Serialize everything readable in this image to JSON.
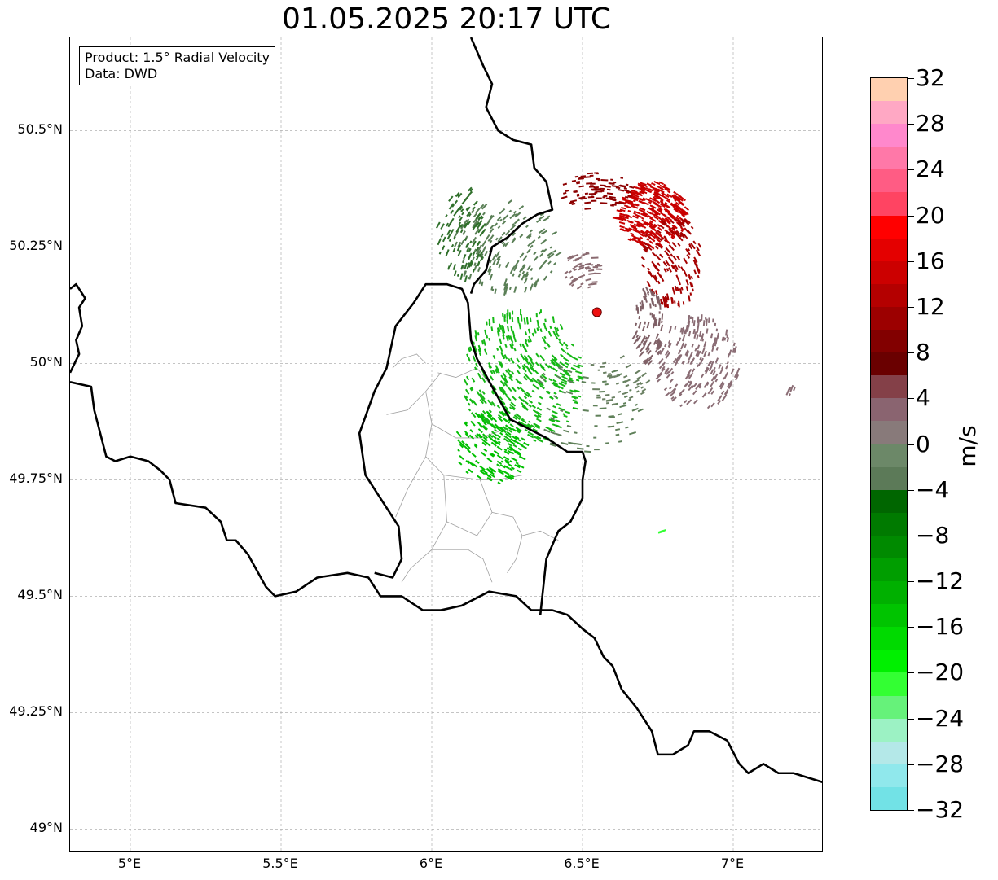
{
  "title": "01.05.2025 20:17 UTC",
  "info_box": {
    "product": "Product: 1.5° Radial Velocity",
    "data_source": "Data: DWD"
  },
  "map": {
    "lon_range": [
      4.8,
      7.3
    ],
    "lat_range": [
      48.95,
      50.7
    ],
    "lat_ticks": [
      {
        "value": 50.5,
        "label": "50.5°N"
      },
      {
        "value": 50.25,
        "label": "50.25°N"
      },
      {
        "value": 50.0,
        "label": "50°N"
      },
      {
        "value": 49.75,
        "label": "49.75°N"
      },
      {
        "value": 49.5,
        "label": "49.5°N"
      },
      {
        "value": 49.25,
        "label": "49.25°N"
      },
      {
        "value": 49.0,
        "label": "49°N"
      }
    ],
    "lon_ticks": [
      {
        "value": 5.0,
        "label": "5°E"
      },
      {
        "value": 5.5,
        "label": "5.5°E"
      },
      {
        "value": 6.0,
        "label": "6°E"
      },
      {
        "value": 6.5,
        "label": "6.5°E"
      },
      {
        "value": 7.0,
        "label": "7°E"
      }
    ],
    "grid": true,
    "radar_site": {
      "lon": 6.548,
      "lat": 50.11,
      "color": "#ee1111"
    },
    "borders": {
      "west": [
        [
          4.8,
          50.16
        ],
        [
          4.82,
          50.17
        ],
        [
          4.85,
          50.14
        ],
        [
          4.83,
          50.12
        ],
        [
          4.84,
          50.08
        ],
        [
          4.82,
          50.05
        ],
        [
          4.83,
          50.02
        ],
        [
          4.8,
          49.98
        ]
      ],
      "main": [
        [
          4.8,
          49.96
        ],
        [
          4.87,
          49.95
        ],
        [
          4.88,
          49.9
        ],
        [
          4.92,
          49.8
        ],
        [
          4.95,
          49.79
        ],
        [
          5.0,
          49.8
        ],
        [
          5.06,
          49.79
        ],
        [
          5.1,
          49.77
        ],
        [
          5.13,
          49.75
        ],
        [
          5.15,
          49.7
        ],
        [
          5.25,
          49.69
        ],
        [
          5.3,
          49.66
        ],
        [
          5.32,
          49.62
        ],
        [
          5.35,
          49.62
        ],
        [
          5.39,
          49.59
        ],
        [
          5.45,
          49.52
        ],
        [
          5.48,
          49.5
        ],
        [
          5.55,
          49.51
        ],
        [
          5.62,
          49.54
        ],
        [
          5.72,
          49.55
        ],
        [
          5.79,
          49.54
        ],
        [
          5.83,
          49.5
        ],
        [
          5.9,
          49.5
        ],
        [
          5.97,
          49.47
        ],
        [
          6.03,
          49.47
        ],
        [
          6.1,
          49.48
        ],
        [
          6.19,
          49.51
        ],
        [
          6.28,
          49.5
        ],
        [
          6.33,
          49.47
        ],
        [
          6.4,
          49.47
        ],
        [
          6.45,
          49.46
        ],
        [
          6.5,
          49.43
        ],
        [
          6.54,
          49.41
        ],
        [
          6.57,
          49.37
        ],
        [
          6.6,
          49.35
        ],
        [
          6.63,
          49.3
        ],
        [
          6.68,
          49.26
        ],
        [
          6.73,
          49.21
        ],
        [
          6.75,
          49.16
        ],
        [
          6.8,
          49.16
        ],
        [
          6.85,
          49.18
        ],
        [
          6.87,
          49.21
        ],
        [
          6.92,
          49.21
        ],
        [
          6.98,
          49.19
        ],
        [
          7.02,
          49.14
        ],
        [
          7.05,
          49.12
        ],
        [
          7.1,
          49.14
        ],
        [
          7.15,
          49.12
        ],
        [
          7.2,
          49.12
        ],
        [
          7.3,
          49.1
        ]
      ],
      "lux": [
        [
          6.36,
          49.46
        ],
        [
          6.37,
          49.52
        ],
        [
          6.38,
          49.58
        ],
        [
          6.42,
          49.64
        ],
        [
          6.46,
          49.66
        ],
        [
          6.5,
          49.71
        ],
        [
          6.5,
          49.75
        ],
        [
          6.51,
          49.79
        ],
        [
          6.5,
          49.81
        ],
        [
          6.45,
          49.81
        ],
        [
          6.38,
          49.84
        ],
        [
          6.32,
          49.86
        ],
        [
          6.26,
          49.88
        ],
        [
          6.2,
          49.95
        ],
        [
          6.15,
          50.01
        ],
        [
          6.13,
          50.05
        ],
        [
          6.12,
          50.13
        ],
        [
          6.1,
          50.16
        ],
        [
          6.05,
          50.17
        ],
        [
          5.98,
          50.17
        ],
        [
          5.94,
          50.13
        ],
        [
          5.88,
          50.08
        ],
        [
          5.85,
          49.99
        ],
        [
          5.81,
          49.94
        ],
        [
          5.76,
          49.85
        ],
        [
          5.78,
          49.76
        ],
        [
          5.82,
          49.72
        ],
        [
          5.89,
          49.65
        ],
        [
          5.9,
          49.58
        ],
        [
          5.87,
          49.54
        ],
        [
          5.81,
          49.55
        ]
      ],
      "de_be": [
        [
          6.13,
          50.7
        ],
        [
          6.17,
          50.64
        ],
        [
          6.2,
          50.6
        ],
        [
          6.18,
          50.55
        ],
        [
          6.22,
          50.5
        ],
        [
          6.27,
          50.48
        ],
        [
          6.33,
          50.47
        ],
        [
          6.34,
          50.42
        ],
        [
          6.38,
          50.39
        ],
        [
          6.4,
          50.33
        ],
        [
          6.35,
          50.32
        ],
        [
          6.3,
          50.3
        ],
        [
          6.25,
          50.27
        ],
        [
          6.2,
          50.25
        ],
        [
          6.18,
          50.2
        ],
        [
          6.14,
          50.17
        ],
        [
          6.13,
          50.15
        ]
      ]
    },
    "canton_lines": [
      [
        [
          5.98,
          50.0
        ],
        [
          5.95,
          50.02
        ],
        [
          5.9,
          50.01
        ],
        [
          5.87,
          49.99
        ]
      ],
      [
        [
          6.02,
          49.98
        ],
        [
          6.08,
          49.97
        ],
        [
          6.15,
          49.99
        ],
        [
          6.2,
          49.95
        ]
      ],
      [
        [
          6.03,
          49.98
        ],
        [
          5.98,
          49.94
        ],
        [
          5.92,
          49.9
        ],
        [
          5.85,
          49.89
        ]
      ],
      [
        [
          5.98,
          49.94
        ],
        [
          6.0,
          49.87
        ],
        [
          6.08,
          49.84
        ],
        [
          6.16,
          49.84
        ],
        [
          6.25,
          49.86
        ]
      ],
      [
        [
          6.0,
          49.87
        ],
        [
          5.98,
          49.8
        ],
        [
          6.04,
          49.76
        ],
        [
          6.16,
          49.75
        ],
        [
          6.22,
          49.75
        ],
        [
          6.3,
          49.76
        ]
      ],
      [
        [
          5.98,
          49.8
        ],
        [
          5.92,
          49.73
        ],
        [
          5.88,
          49.67
        ]
      ],
      [
        [
          6.04,
          49.76
        ],
        [
          6.05,
          49.66
        ],
        [
          6.0,
          49.6
        ],
        [
          5.93,
          49.56
        ],
        [
          5.9,
          49.53
        ]
      ],
      [
        [
          6.16,
          49.75
        ],
        [
          6.2,
          49.68
        ],
        [
          6.27,
          49.67
        ],
        [
          6.3,
          49.63
        ],
        [
          6.28,
          49.58
        ],
        [
          6.25,
          49.55
        ]
      ],
      [
        [
          6.05,
          49.66
        ],
        [
          6.15,
          49.63
        ],
        [
          6.2,
          49.68
        ]
      ],
      [
        [
          6.0,
          49.6
        ],
        [
          6.12,
          49.6
        ],
        [
          6.17,
          49.58
        ],
        [
          6.2,
          49.53
        ]
      ],
      [
        [
          6.3,
          49.63
        ],
        [
          6.36,
          49.64
        ],
        [
          6.42,
          49.62
        ]
      ]
    ],
    "echo_clusters": [
      {
        "lon": 6.73,
        "lat": 50.32,
        "rx": 0.12,
        "ry": 0.07,
        "n": 340,
        "color": "#c80000"
      },
      {
        "lon": 6.8,
        "lat": 50.22,
        "rx": 0.1,
        "ry": 0.1,
        "n": 150,
        "color": "#a40000"
      },
      {
        "lon": 6.55,
        "lat": 50.37,
        "rx": 0.12,
        "ry": 0.04,
        "n": 90,
        "color": "#8c0000"
      },
      {
        "lon": 6.88,
        "lat": 50.0,
        "rx": 0.14,
        "ry": 0.1,
        "n": 200,
        "color": "#8a6c74"
      },
      {
        "lon": 6.72,
        "lat": 50.08,
        "rx": 0.05,
        "ry": 0.08,
        "n": 90,
        "color": "#7f6066"
      },
      {
        "lon": 6.5,
        "lat": 50.2,
        "rx": 0.06,
        "ry": 0.04,
        "n": 50,
        "color": "#8a6a70"
      },
      {
        "lon": 6.25,
        "lat": 50.25,
        "rx": 0.18,
        "ry": 0.1,
        "n": 180,
        "color": "#5a7f56"
      },
      {
        "lon": 6.1,
        "lat": 50.28,
        "rx": 0.08,
        "ry": 0.1,
        "n": 100,
        "color": "#2f6f2a"
      },
      {
        "lon": 6.3,
        "lat": 49.97,
        "rx": 0.2,
        "ry": 0.15,
        "n": 400,
        "color": "#14b814"
      },
      {
        "lon": 6.2,
        "lat": 49.82,
        "rx": 0.12,
        "ry": 0.08,
        "n": 150,
        "color": "#00c000"
      },
      {
        "lon": 6.5,
        "lat": 49.9,
        "rx": 0.2,
        "ry": 0.1,
        "n": 70,
        "color": "#5f8059"
      },
      {
        "lon": 6.62,
        "lat": 49.97,
        "rx": 0.1,
        "ry": 0.06,
        "n": 40,
        "color": "#6a8062"
      },
      {
        "lon": 7.2,
        "lat": 49.94,
        "rx": 0.02,
        "ry": 0.01,
        "n": 5,
        "color": "#8a6c74"
      },
      {
        "lon": 6.76,
        "lat": 49.64,
        "rx": 0.01,
        "ry": 0.004,
        "n": 3,
        "color": "#33ff33"
      }
    ]
  },
  "colorbar": {
    "min": -32,
    "max": 32,
    "unit": "m/s",
    "ticks": [
      32,
      28,
      24,
      20,
      16,
      12,
      8,
      4,
      0,
      -4,
      -8,
      -12,
      -16,
      -20,
      -24,
      -28,
      -32
    ],
    "tick_labels": [
      "32",
      "28",
      "24",
      "20",
      "16",
      "12",
      "8",
      "4",
      "0",
      "−4",
      "−8",
      "−12",
      "−16",
      "−20",
      "−24",
      "−28",
      "−32"
    ],
    "colors_top_to_bottom": [
      "#ffd0b0",
      "#ffa8c4",
      "#ff88cc",
      "#ff78a8",
      "#ff5c84",
      "#ff4462",
      "#ff0000",
      "#e40000",
      "#cc0000",
      "#b40000",
      "#9c0000",
      "#820000",
      "#6a0000",
      "#844048",
      "#8a6470",
      "#887a7a",
      "#6c8868",
      "#5c7a58",
      "#006600",
      "#007a00",
      "#008a00",
      "#009e00",
      "#00b000",
      "#00c400",
      "#00da00",
      "#00f000",
      "#33ff33",
      "#66f27a",
      "#9cf2c4",
      "#b4e8e8",
      "#90e8ec",
      "#72e2e6"
    ]
  }
}
